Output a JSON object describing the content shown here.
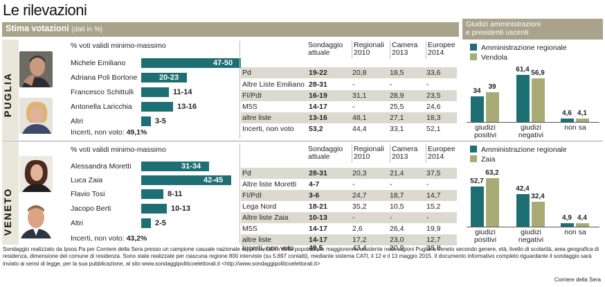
{
  "title": "Le rilevazioni",
  "header": {
    "main": "Stima votazioni",
    "main_sub": "(dati in %)",
    "side_line1": "Giudizi amministrazioni",
    "side_line2": "e presidenti uscenti"
  },
  "colors": {
    "teal": "#1e6f74",
    "olive": "#a9ab76",
    "header": "#a8a38a",
    "shade": "#dcdad0"
  },
  "table_headers": {
    "c1a": "Sondaggio",
    "c1b": "attuale",
    "c2a": "Regionali",
    "c2b": "2010",
    "c3a": "Camera",
    "c3b": "2013",
    "c4a": "Europee",
    "c4b": "2014"
  },
  "regions": [
    {
      "name": "PUGLIA",
      "range_title": "% voti validi minimo-massimo",
      "candidates": [
        {
          "name": "Michele Emiliano",
          "range": "47-50",
          "value": 50
        },
        {
          "name": "Adriana Poli Bortone",
          "range": "20-23",
          "value": 23
        },
        {
          "name": "Francesco Schittulli",
          "range": "11-14",
          "value": 14
        },
        {
          "name": "Antonella Laricchia",
          "range": "13-16",
          "value": 16
        },
        {
          "name": "Altri",
          "range": "3-5",
          "value": 5
        }
      ],
      "incerti_label": "Incerti, non voto:",
      "incerti_value": "49,1%",
      "table": [
        [
          "Pd",
          "19-22",
          "20,8",
          "18,5",
          "33,6"
        ],
        [
          "Altre Liste Emiliano",
          "28-31",
          "-",
          "-",
          "-"
        ],
        [
          "FI/PdI",
          "16-19",
          "31,1",
          "28,9",
          "23,5"
        ],
        [
          "M5S",
          "14-17",
          "-",
          "25,5",
          "24,6"
        ],
        [
          "altre liste",
          "13-16",
          "48,1",
          "27,1",
          "18,3"
        ],
        [
          "Incerti, non voto",
          "53,2",
          "44,4",
          "33,1",
          "52,1"
        ]
      ],
      "side": {
        "legend": [
          "Amministrazione regionale",
          "Vendola"
        ],
        "groups": [
          {
            "label_a": "giudizi",
            "label_b": "positivi",
            "values": [
              34,
              39
            ],
            "labels": [
              "34",
              "39"
            ]
          },
          {
            "label_a": "giudizi",
            "label_b": "negativi",
            "values": [
              61.4,
              56.9
            ],
            "labels": [
              "61,4",
              "56,9"
            ]
          },
          {
            "label_a": "non sa",
            "label_b": "",
            "values": [
              4.6,
              4.1
            ],
            "labels": [
              "4,6",
              "4,1"
            ]
          }
        ]
      }
    },
    {
      "name": "VENETO",
      "range_title": "% voti validi minimo-massimo",
      "candidates": [
        {
          "name": "Alessandra Moretti",
          "range": "31-34",
          "value": 34
        },
        {
          "name": "Luca Zaia",
          "range": "42-45",
          "value": 45
        },
        {
          "name": "Flavio Tosi",
          "range": "8-11",
          "value": 11
        },
        {
          "name": "Jacopo Berti",
          "range": "10-13",
          "value": 13
        },
        {
          "name": "Altri",
          "range": "2-5",
          "value": 5
        }
      ],
      "incerti_label": "Incerti, non voto:",
      "incerti_value": "43,2%",
      "table": [
        [
          "Pd",
          "28-31",
          "20,3",
          "21,4",
          "37,5"
        ],
        [
          "Altre liste Moretti",
          "4-7",
          "-",
          "-",
          "-"
        ],
        [
          "FI/PdI",
          "3-6",
          "24,7",
          "18,7",
          "14,7"
        ],
        [
          "Lega Nord",
          "18-21",
          "35,2",
          "10,5",
          "15,2"
        ],
        [
          "Altre liste Zaia",
          "10-13",
          "-",
          "-",
          "-"
        ],
        [
          "M5S",
          "14-17",
          "2,6",
          "26,4",
          "19,9"
        ],
        [
          "altre liste",
          "14-17",
          "17,2",
          "23,0",
          "12,7"
        ],
        [
          "Incerti, non voto",
          "49,5",
          "43,4",
          "20,9",
          "38,8"
        ]
      ],
      "side": {
        "legend": [
          "Amministrazione regionale",
          "Zaia"
        ],
        "groups": [
          {
            "label_a": "giudizi",
            "label_b": "positivi",
            "values": [
              52.7,
              63.2
            ],
            "labels": [
              "52,7",
              "63,2"
            ]
          },
          {
            "label_a": "giudizi",
            "label_b": "negativi",
            "values": [
              42.4,
              32.4
            ],
            "labels": [
              "42,4",
              "32,4"
            ]
          },
          {
            "label_a": "non sa",
            "label_b": "",
            "values": [
              4.9,
              4.4
            ],
            "labels": [
              "4,9",
              "4,4"
            ]
          }
        ]
      }
    }
  ],
  "footnote": "Sondaggio realizzato da Ipsos Pa per Corriere della Sera presso un campione casuale nazionale rappresentativo della popolazione maggiorenne residente nelle regioni Puglia e Veneto secondo genere, età, livello di scolarità, area geografica di residenza, dimensione del comune di residenza. Sono state realizzate per ciascuna regione 800 interviste (su 5.897 contatti), mediante sistema CATI, il 12 e il 13 maggio 2015. Il documento informativo completo riguardante il sondaggio sarà inviato ai sensi di legge, per la sua pubblicazione, al sito www.sondaggipoliticoelettorali.it <http://www.sondaggipoliticoelettorali.it>",
  "credit": "Corriere della Sera",
  "chart_data": [
    {
      "type": "bar",
      "title": "PUGLIA — % voti validi minimo-massimo",
      "categories": [
        "Michele Emiliano",
        "Adriana Poli Bortone",
        "Francesco Schittulli",
        "Antonella Laricchia",
        "Altri"
      ],
      "series": [
        {
          "values": [
            50,
            23,
            14,
            16,
            5
          ]
        }
      ],
      "labels": [
        "47-50",
        "20-23",
        "11-14",
        "13-16",
        "3-5"
      ]
    },
    {
      "type": "bar",
      "title": "VENETO — % voti validi minimo-massimo",
      "categories": [
        "Alessandra Moretti",
        "Luca Zaia",
        "Flavio Tosi",
        "Jacopo Berti",
        "Altri"
      ],
      "series": [
        {
          "values": [
            34,
            45,
            11,
            13,
            5
          ]
        }
      ],
      "labels": [
        "31-34",
        "42-45",
        "8-11",
        "10-13",
        "2-5"
      ]
    },
    {
      "type": "bar",
      "title": "Giudizi amministrazioni e presidenti uscenti — Puglia",
      "categories": [
        "giudizi positivi",
        "giudizi negativi",
        "non sa"
      ],
      "series": [
        {
          "name": "Amministrazione regionale",
          "values": [
            34,
            61.4,
            4.6
          ]
        },
        {
          "name": "Vendola",
          "values": [
            39,
            56.9,
            4.1
          ]
        }
      ]
    },
    {
      "type": "bar",
      "title": "Giudizi amministrazioni e presidenti uscenti — Veneto",
      "categories": [
        "giudizi positivi",
        "giudizi negativi",
        "non sa"
      ],
      "series": [
        {
          "name": "Amministrazione regionale",
          "values": [
            52.7,
            42.4,
            4.9
          ]
        },
        {
          "name": "Zaia",
          "values": [
            63.2,
            32.4,
            4.4
          ]
        }
      ]
    }
  ]
}
